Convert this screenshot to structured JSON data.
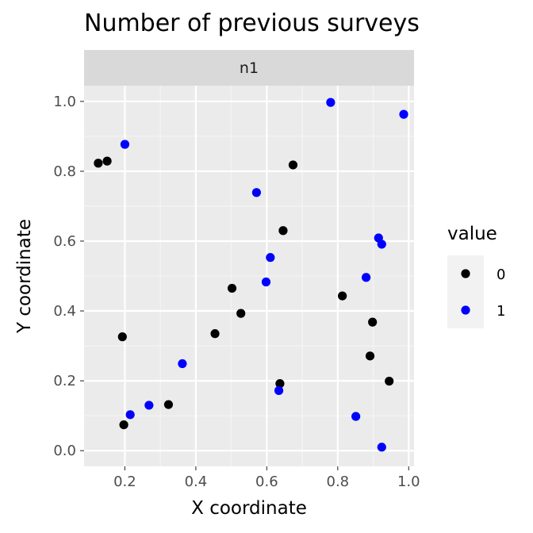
{
  "chart_data": {
    "type": "scatter",
    "title": "Number of previous surveys",
    "facet_label": "n1",
    "xlabel": "X coordinate",
    "ylabel": "Y coordinate",
    "xlim": [
      0.085,
      1.015
    ],
    "ylim": [
      -0.045,
      1.045
    ],
    "x_ticks": [
      0.2,
      0.4,
      0.6,
      0.8,
      1.0
    ],
    "x_tick_labels": [
      "0.2",
      "0.4",
      "0.6",
      "0.8",
      "1.0"
    ],
    "y_ticks": [
      0.0,
      0.2,
      0.4,
      0.6,
      0.8,
      1.0
    ],
    "y_tick_labels": [
      "0.0",
      "0.2",
      "0.4",
      "0.6",
      "0.8",
      "1.0"
    ],
    "grid": true,
    "legend": {
      "title": "value",
      "position": "right",
      "entries": [
        {
          "label": "0",
          "color": "#000000"
        },
        {
          "label": "1",
          "color": "#0000ff"
        }
      ]
    },
    "series": [
      {
        "name": "0",
        "color": "#000000",
        "points": [
          {
            "x": 0.125,
            "y": 0.823
          },
          {
            "x": 0.15,
            "y": 0.829
          },
          {
            "x": 0.674,
            "y": 0.818
          },
          {
            "x": 0.646,
            "y": 0.63
          },
          {
            "x": 0.502,
            "y": 0.465
          },
          {
            "x": 0.527,
            "y": 0.393
          },
          {
            "x": 0.813,
            "y": 0.443
          },
          {
            "x": 0.898,
            "y": 0.368
          },
          {
            "x": 0.193,
            "y": 0.326
          },
          {
            "x": 0.454,
            "y": 0.335
          },
          {
            "x": 0.891,
            "y": 0.271
          },
          {
            "x": 0.637,
            "y": 0.192
          },
          {
            "x": 0.945,
            "y": 0.199
          },
          {
            "x": 0.323,
            "y": 0.132
          },
          {
            "x": 0.197,
            "y": 0.074
          }
        ]
      },
      {
        "name": "1",
        "color": "#0000ff",
        "points": [
          {
            "x": 0.78,
            "y": 0.997
          },
          {
            "x": 0.986,
            "y": 0.963
          },
          {
            "x": 0.2,
            "y": 0.877
          },
          {
            "x": 0.571,
            "y": 0.739
          },
          {
            "x": 0.915,
            "y": 0.609
          },
          {
            "x": 0.924,
            "y": 0.591
          },
          {
            "x": 0.61,
            "y": 0.553
          },
          {
            "x": 0.88,
            "y": 0.496
          },
          {
            "x": 0.598,
            "y": 0.483
          },
          {
            "x": 0.362,
            "y": 0.249
          },
          {
            "x": 0.634,
            "y": 0.172
          },
          {
            "x": 0.268,
            "y": 0.13
          },
          {
            "x": 0.215,
            "y": 0.103
          },
          {
            "x": 0.851,
            "y": 0.098
          },
          {
            "x": 0.924,
            "y": 0.01
          }
        ]
      }
    ]
  }
}
